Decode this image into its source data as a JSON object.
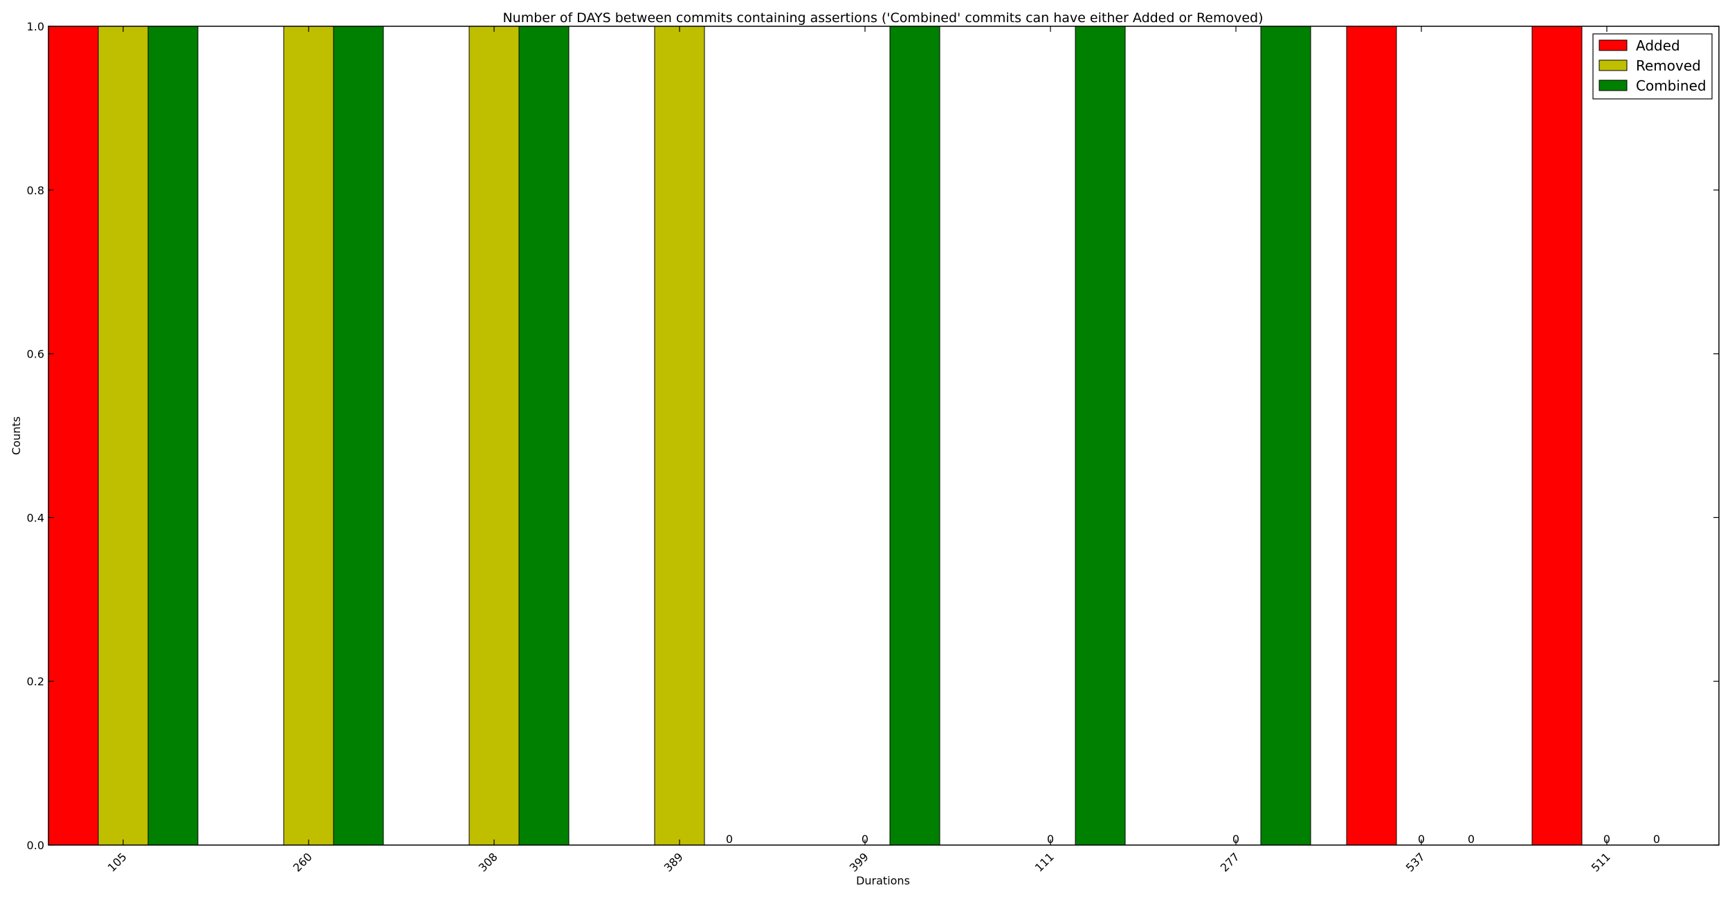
{
  "chart_data": {
    "type": "bar",
    "title": "Number of DAYS between commits containing assertions ('Combined' commits can have either Added or Removed)",
    "xlabel": "Durations",
    "ylabel": "Counts",
    "categories": [
      "105",
      "260",
      "308",
      "389",
      "399",
      "111",
      "277",
      "537",
      "511"
    ],
    "ylim": [
      0,
      1.0
    ],
    "yticks": [
      "0.0",
      "0.2",
      "0.4",
      "0.6",
      "0.8",
      "1.0"
    ],
    "legend_position": "top-right",
    "zero_label": "0",
    "series": [
      {
        "name": "Added",
        "color": "#ff0000",
        "values": [
          1,
          0,
          0,
          0,
          0,
          0,
          0,
          1,
          1
        ]
      },
      {
        "name": "Removed",
        "color": "#bfbf00",
        "values": [
          1,
          1,
          1,
          1,
          0,
          0,
          0,
          0,
          0
        ]
      },
      {
        "name": "Combined",
        "color": "#008000",
        "values": [
          1,
          1,
          1,
          0,
          1,
          1,
          1,
          0,
          0
        ]
      }
    ]
  }
}
